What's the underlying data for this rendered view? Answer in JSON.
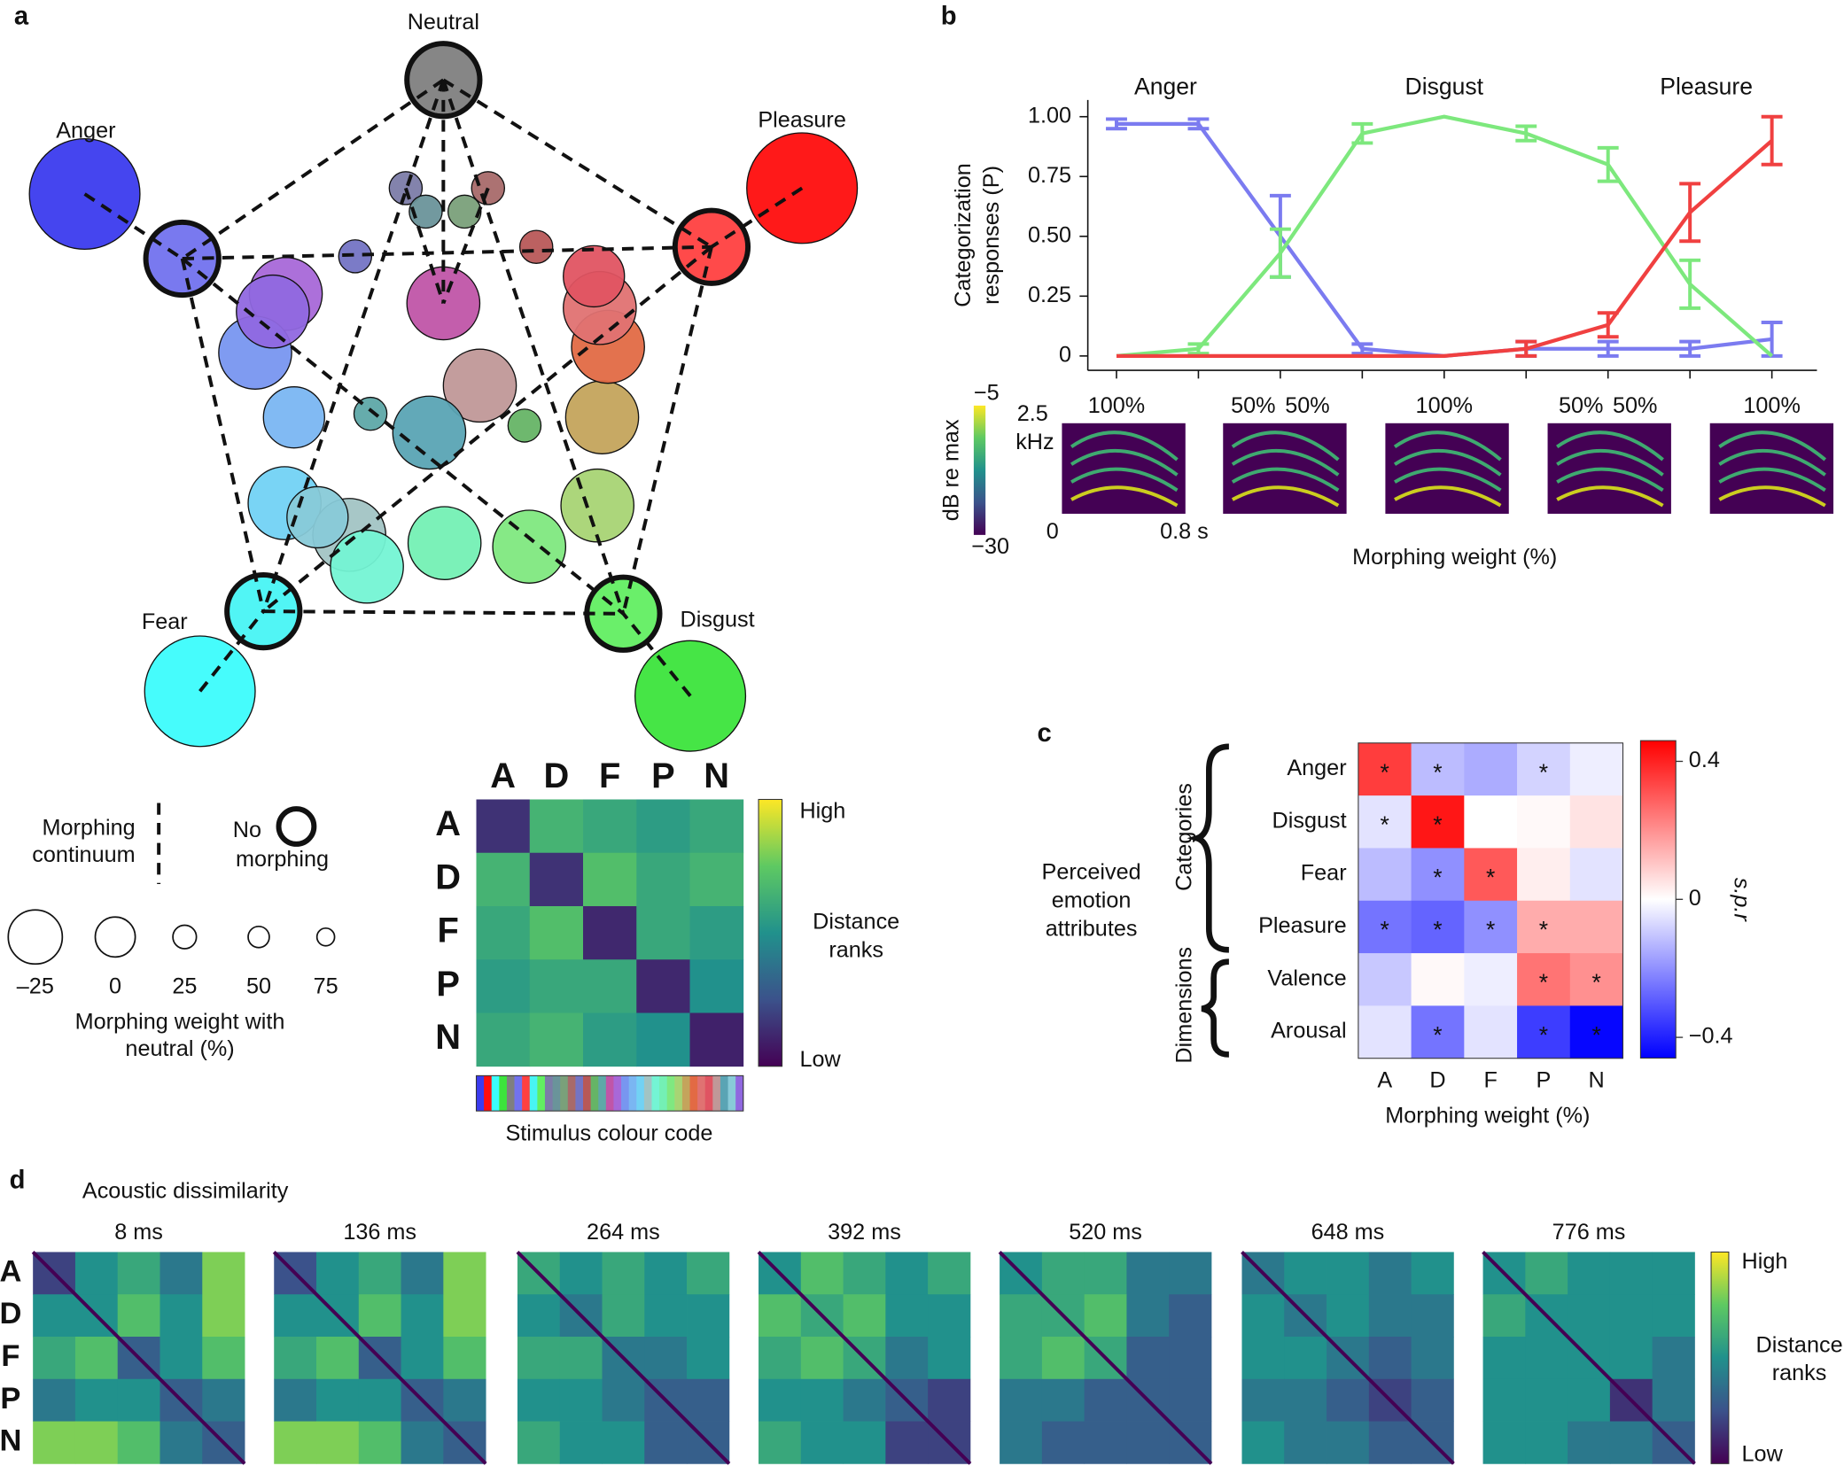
{
  "panel_labels": [
    "a",
    "b",
    "c",
    "d"
  ],
  "panel_a": {
    "nodes": [
      {
        "label": "Anger",
        "label_color": "#2424e6",
        "color": "#3b3bee",
        "weight": -25
      },
      {
        "label": "Pleasure",
        "label_color": "#ee1010",
        "color": "#ff0d0d",
        "weight": -25
      },
      {
        "label": "Fear",
        "label_color": "#20dede",
        "color": "#3cfcfc",
        "weight": -25
      },
      {
        "label": "Disgust",
        "label_color": "#2ccc2c",
        "color": "#3ce43c",
        "weight": -25
      },
      {
        "label": "Neutral",
        "label_color": "#8a8a8a",
        "color": "#7f7f7f",
        "weight": 100
      },
      {
        "color": "#7272ee",
        "weight": 0
      },
      {
        "color": "#ff4040",
        "weight": 0
      },
      {
        "color": "#48f4f4",
        "weight": 0
      },
      {
        "color": "#62ee62",
        "weight": 0
      },
      {
        "color": "#7c7ca8",
        "weight": 75
      },
      {
        "color": "#6a949a",
        "weight": 75
      },
      {
        "color": "#7aa07a",
        "weight": 75
      },
      {
        "color": "#a86a6a",
        "weight": 75
      },
      {
        "color": "#7474c4",
        "weight": 75
      },
      {
        "color": "#b85858",
        "weight": 75
      },
      {
        "color": "#66b466",
        "weight": 75
      },
      {
        "color": "#5ea8a8",
        "weight": 75
      },
      {
        "color": "#c055a8",
        "weight": 25
      },
      {
        "color": "#a868d8",
        "weight": 25
      },
      {
        "color": "#7896f0",
        "weight": 25
      },
      {
        "color": "#7ab6f2",
        "weight": 50
      },
      {
        "color": "#72d2f4",
        "weight": 25
      },
      {
        "color": "#a2c4c4",
        "weight": 25
      },
      {
        "color": "#74f4d4",
        "weight": 25
      },
      {
        "color": "#74f0b4",
        "weight": 25
      },
      {
        "color": "#80e880",
        "weight": 25
      },
      {
        "color": "#a8d474",
        "weight": 25
      },
      {
        "color": "#c4a45c",
        "weight": 25
      },
      {
        "color": "#e26a44",
        "weight": 25
      },
      {
        "color": "#e07272",
        "weight": 25
      },
      {
        "color": "#e05462",
        "weight": 50
      },
      {
        "color": "#c09898",
        "weight": 25
      },
      {
        "color": "#5aa4b4",
        "weight": 25
      },
      {
        "color": "#88cad8",
        "weight": 50
      },
      {
        "color": "#9068e0",
        "weight": 25
      }
    ],
    "legend": {
      "continuum": [
        "Morphing",
        "continuum"
      ],
      "no_morph": [
        "No",
        "morphing"
      ],
      "weights": [
        {
          "value": -25,
          "label": "–25"
        },
        0,
        25,
        50,
        75
      ],
      "weight_title": [
        "Morphing weight with",
        "neutral (%)"
      ]
    }
  },
  "rdm": {
    "letters": [
      {
        "text": "A",
        "color": "#1a1aff"
      },
      {
        "text": "D",
        "color": "#22dd22"
      },
      {
        "text": "F",
        "color": "#22e5e5"
      },
      {
        "text": "P",
        "color": "#ff1a1a"
      },
      {
        "text": "N",
        "color": "#808080"
      }
    ],
    "matrix": [
      [
        0.15,
        0.65,
        0.6,
        0.55,
        0.6
      ],
      [
        0.65,
        0.15,
        0.7,
        0.6,
        0.65
      ],
      [
        0.6,
        0.7,
        0.12,
        0.6,
        0.55
      ],
      [
        0.55,
        0.6,
        0.6,
        0.12,
        0.5
      ],
      [
        0.6,
        0.65,
        0.55,
        0.5,
        0.1
      ]
    ],
    "colorbar": {
      "high": "High",
      "low": "Low",
      "title": [
        "Distance",
        "ranks"
      ]
    },
    "strip_title": "Stimulus colour code"
  },
  "chart_data": [
    {
      "type": "line",
      "categories": [
        "100%",
        null,
        [
          "50%",
          "50%"
        ],
        null,
        "100%",
        null,
        [
          "50%",
          "50%"
        ],
        null,
        "100%"
      ],
      "category_colors": [
        "#8080f0",
        null,
        [
          "#8080f0",
          "#7de87d"
        ],
        null,
        "#7de87d",
        null,
        [
          "#7de87d",
          "#f04040"
        ],
        null,
        "#f04040"
      ],
      "series": [
        {
          "name": "Anger",
          "color": "#7b7bf0",
          "values": [
            0.97,
            0.97,
            0.5,
            0.03,
            0,
            0.03,
            0.03,
            0.03,
            0.07
          ],
          "errors": [
            0.02,
            0.02,
            0.17,
            0.02,
            0,
            0.03,
            0.03,
            0.03,
            0.07
          ]
        },
        {
          "name": "Disgust",
          "color": "#7de87d",
          "values": [
            0,
            0.03,
            0.43,
            0.93,
            1.0,
            0.93,
            0.8,
            0.3,
            0
          ],
          "errors": [
            0,
            0.02,
            0.1,
            0.04,
            0,
            0.03,
            0.07,
            0.1,
            0
          ]
        },
        {
          "name": "Pleasure",
          "color": "#f04040",
          "values": [
            0,
            0,
            0,
            0,
            0,
            0.03,
            0.13,
            0.6,
            0.9
          ],
          "errors": [
            0,
            0,
            0,
            0,
            0,
            0.03,
            0.05,
            0.12,
            0.1
          ]
        }
      ],
      "ylabel": [
        "Categorization",
        "responses (P)"
      ],
      "xlabel": "Morphing weight (%)",
      "xlim": [
        -0.35,
        8.55
      ],
      "ylim": [
        -0.06,
        1.07
      ],
      "yticks": [
        0,
        {
          "value": 0.25,
          "label": "0.25"
        },
        {
          "value": 0.5,
          "label": "0.50"
        },
        {
          "value": 0.75,
          "label": "0.75"
        },
        {
          "value": 1,
          "label": "1.00"
        }
      ]
    },
    {
      "type": "heatmap",
      "rows": [
        "Anger",
        "Disgust",
        "Fear",
        "Pleasure",
        "Valence",
        "Arousal"
      ],
      "row_colors": [
        "#8080f0",
        "#7de87d",
        "#30d8e8",
        "#f04040",
        "#111111",
        "#111111"
      ],
      "columns": [
        "A",
        "D",
        "F",
        "P",
        "N"
      ],
      "column_colors": [
        "#8080f0",
        "#7de87d",
        "#30d8e8",
        "#f04040",
        "#808080"
      ],
      "values": [
        [
          0.35,
          -0.12,
          -0.15,
          -0.08,
          -0.03
        ],
        [
          -0.05,
          0.42,
          0,
          0.01,
          0.05
        ],
        [
          -0.12,
          -0.2,
          0.3,
          0.03,
          -0.05
        ],
        [
          -0.25,
          -0.28,
          -0.2,
          0.15,
          0.15
        ],
        [
          -0.1,
          0.01,
          -0.03,
          0.25,
          0.2
        ],
        [
          -0.05,
          -0.25,
          -0.05,
          -0.35,
          -0.45
        ]
      ],
      "significant": [
        [
          1,
          1,
          0,
          1,
          0
        ],
        [
          1,
          1,
          0,
          0,
          0
        ],
        [
          0,
          1,
          1,
          0,
          0
        ],
        [
          1,
          1,
          1,
          1,
          0
        ],
        [
          0,
          0,
          0,
          1,
          1
        ],
        [
          0,
          1,
          0,
          1,
          1
        ]
      ],
      "marker": "*",
      "clim": [
        -0.46,
        0.46
      ],
      "cticks": [
        {
          "value": -0.4,
          "label": "−0.4"
        },
        0,
        0.4
      ],
      "colorbar_label": "s.p.r",
      "groups": [
        "Categories",
        "Dimensions"
      ],
      "side_label": [
        "Perceived",
        "emotion",
        "attributes"
      ],
      "xlabel": "Morphing weight (%)"
    }
  ],
  "spectrograms": {
    "colorbar_title": "dB re max",
    "top": "−5",
    "bottom": "−30",
    "freq": [
      "2.5",
      "kHz"
    ],
    "t0": "0",
    "t1": "0.8 s"
  },
  "panel_d": {
    "title": "Acoustic dissimilarity",
    "times": [
      "8 ms",
      "136 ms",
      "264 ms",
      "392 ms",
      "520 ms",
      "648 ms",
      "776 ms"
    ],
    "matrices": [
      [
        [
          0.2,
          0.5,
          0.6,
          0.4,
          0.8
        ],
        [
          0.5,
          0.5,
          0.7,
          0.5,
          0.8
        ],
        [
          0.6,
          0.7,
          0.3,
          0.5,
          0.7
        ],
        [
          0.4,
          0.5,
          0.5,
          0.3,
          0.4
        ],
        [
          0.8,
          0.8,
          0.7,
          0.4,
          0.3
        ]
      ],
      [
        [
          0.25,
          0.5,
          0.6,
          0.4,
          0.8
        ],
        [
          0.5,
          0.5,
          0.7,
          0.5,
          0.8
        ],
        [
          0.6,
          0.7,
          0.3,
          0.5,
          0.7
        ],
        [
          0.4,
          0.5,
          0.5,
          0.3,
          0.4
        ],
        [
          0.8,
          0.8,
          0.7,
          0.4,
          0.3
        ]
      ],
      [
        [
          0.6,
          0.5,
          0.6,
          0.5,
          0.6
        ],
        [
          0.5,
          0.4,
          0.6,
          0.5,
          0.5
        ],
        [
          0.6,
          0.6,
          0.4,
          0.4,
          0.5
        ],
        [
          0.5,
          0.5,
          0.4,
          0.3,
          0.3
        ],
        [
          0.6,
          0.5,
          0.5,
          0.3,
          0.3
        ]
      ],
      [
        [
          0.5,
          0.7,
          0.6,
          0.5,
          0.6
        ],
        [
          0.7,
          0.6,
          0.7,
          0.5,
          0.5
        ],
        [
          0.6,
          0.7,
          0.6,
          0.4,
          0.5
        ],
        [
          0.5,
          0.5,
          0.4,
          0.3,
          0.2
        ],
        [
          0.6,
          0.5,
          0.5,
          0.2,
          0.2
        ]
      ],
      [
        [
          0.5,
          0.6,
          0.6,
          0.4,
          0.4
        ],
        [
          0.6,
          0.6,
          0.7,
          0.4,
          0.3
        ],
        [
          0.6,
          0.7,
          0.6,
          0.3,
          0.3
        ],
        [
          0.4,
          0.4,
          0.3,
          0.3,
          0.3
        ],
        [
          0.4,
          0.3,
          0.3,
          0.3,
          0.3
        ]
      ],
      [
        [
          0.4,
          0.5,
          0.5,
          0.4,
          0.5
        ],
        [
          0.5,
          0.4,
          0.5,
          0.4,
          0.4
        ],
        [
          0.5,
          0.5,
          0.4,
          0.3,
          0.4
        ],
        [
          0.4,
          0.4,
          0.3,
          0.2,
          0.3
        ],
        [
          0.5,
          0.4,
          0.4,
          0.3,
          0.3
        ]
      ],
      [
        [
          0.5,
          0.6,
          0.5,
          0.5,
          0.5
        ],
        [
          0.6,
          0.5,
          0.5,
          0.5,
          0.5
        ],
        [
          0.5,
          0.5,
          0.5,
          0.5,
          0.4
        ],
        [
          0.5,
          0.5,
          0.5,
          0.15,
          0.4
        ],
        [
          0.5,
          0.5,
          0.4,
          0.4,
          0.3
        ]
      ]
    ],
    "colorbar": {
      "high": "High",
      "low": "Low",
      "title": [
        "Distance",
        "ranks"
      ]
    }
  }
}
